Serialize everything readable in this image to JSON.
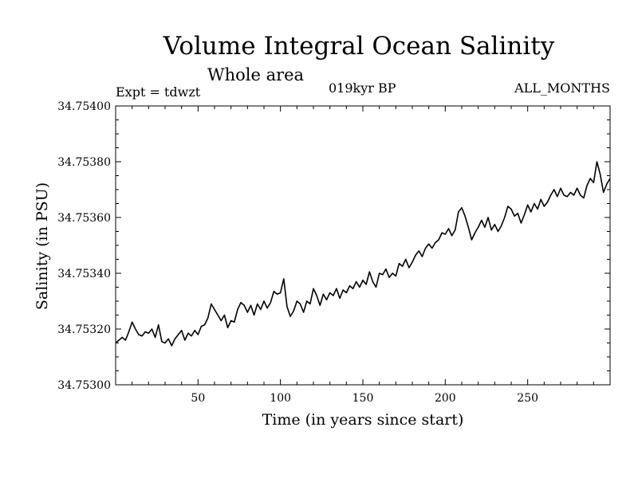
{
  "chart_data": {
    "type": "line",
    "title": "Volume Integral Ocean Salinity",
    "subtitle": "Whole area",
    "experiment": "Expt = tdwzt",
    "period": "019kyr BP",
    "months": "ALL_MONTHS",
    "xlabel": "Time (in years since start)",
    "ylabel": "Salinity (in PSU)",
    "xlim": [
      0,
      300
    ],
    "ylim": [
      34.753,
      34.754
    ],
    "x_ticks": [
      50,
      100,
      150,
      200,
      250
    ],
    "y_ticks": [
      "34.75300",
      "34.75320",
      "34.75340",
      "34.75360",
      "34.75380",
      "34.75400"
    ],
    "grid": false,
    "series": [
      {
        "points": [
          [
            0,
            34.75315
          ],
          [
            2,
            34.75316
          ],
          [
            4,
            34.75317
          ],
          [
            6,
            34.75316
          ],
          [
            8,
            34.75319
          ],
          [
            10,
            34.753225
          ],
          [
            12,
            34.7532
          ],
          [
            14,
            34.75318
          ],
          [
            16,
            34.753175
          ],
          [
            18,
            34.75319
          ],
          [
            20,
            34.753185
          ],
          [
            22,
            34.7532
          ],
          [
            24,
            34.75317
          ],
          [
            26,
            34.753215
          ],
          [
            28,
            34.753155
          ],
          [
            30,
            34.75315
          ],
          [
            32,
            34.753165
          ],
          [
            34,
            34.75314
          ],
          [
            36,
            34.753165
          ],
          [
            38,
            34.75318
          ],
          [
            40,
            34.753195
          ],
          [
            42,
            34.75316
          ],
          [
            44,
            34.753185
          ],
          [
            46,
            34.753175
          ],
          [
            48,
            34.753195
          ],
          [
            50,
            34.75318
          ],
          [
            52,
            34.75321
          ],
          [
            54,
            34.753215
          ],
          [
            56,
            34.75324
          ],
          [
            58,
            34.75329
          ],
          [
            60,
            34.75327
          ],
          [
            62,
            34.75325
          ],
          [
            64,
            34.75323
          ],
          [
            66,
            34.75325
          ],
          [
            68,
            34.753205
          ],
          [
            70,
            34.75323
          ],
          [
            72,
            34.753225
          ],
          [
            74,
            34.75327
          ],
          [
            76,
            34.753295
          ],
          [
            78,
            34.753285
          ],
          [
            80,
            34.75326
          ],
          [
            82,
            34.753285
          ],
          [
            84,
            34.75325
          ],
          [
            86,
            34.75329
          ],
          [
            88,
            34.75327
          ],
          [
            90,
            34.7533
          ],
          [
            92,
            34.753275
          ],
          [
            94,
            34.753295
          ],
          [
            96,
            34.753335
          ],
          [
            98,
            34.753325
          ],
          [
            100,
            34.75333
          ],
          [
            102,
            34.75338
          ],
          [
            104,
            34.75328
          ],
          [
            106,
            34.753245
          ],
          [
            108,
            34.753265
          ],
          [
            110,
            34.7533
          ],
          [
            112,
            34.75329
          ],
          [
            114,
            34.75326
          ],
          [
            116,
            34.7533
          ],
          [
            118,
            34.75329
          ],
          [
            120,
            34.753345
          ],
          [
            122,
            34.75332
          ],
          [
            124,
            34.753285
          ],
          [
            126,
            34.753325
          ],
          [
            128,
            34.753305
          ],
          [
            130,
            34.75333
          ],
          [
            132,
            34.75332
          ],
          [
            134,
            34.753345
          ],
          [
            136,
            34.75331
          ],
          [
            138,
            34.75334
          ],
          [
            140,
            34.75333
          ],
          [
            142,
            34.753355
          ],
          [
            144,
            34.753345
          ],
          [
            146,
            34.75337
          ],
          [
            148,
            34.75335
          ],
          [
            150,
            34.753375
          ],
          [
            152,
            34.75336
          ],
          [
            154,
            34.753405
          ],
          [
            156,
            34.75337
          ],
          [
            158,
            34.75335
          ],
          [
            160,
            34.7534
          ],
          [
            162,
            34.753395
          ],
          [
            164,
            34.753415
          ],
          [
            166,
            34.753385
          ],
          [
            168,
            34.7534
          ],
          [
            170,
            34.75339
          ],
          [
            172,
            34.753435
          ],
          [
            174,
            34.753425
          ],
          [
            176,
            34.75345
          ],
          [
            178,
            34.75342
          ],
          [
            180,
            34.75344
          ],
          [
            182,
            34.753465
          ],
          [
            184,
            34.75348
          ],
          [
            186,
            34.75346
          ],
          [
            188,
            34.75349
          ],
          [
            190,
            34.753505
          ],
          [
            192,
            34.75349
          ],
          [
            194,
            34.75351
          ],
          [
            196,
            34.75352
          ],
          [
            198,
            34.753545
          ],
          [
            200,
            34.75354
          ],
          [
            202,
            34.75356
          ],
          [
            204,
            34.753535
          ],
          [
            206,
            34.753555
          ],
          [
            208,
            34.75362
          ],
          [
            210,
            34.753635
          ],
          [
            212,
            34.753605
          ],
          [
            214,
            34.753565
          ],
          [
            216,
            34.75352
          ],
          [
            218,
            34.753545
          ],
          [
            220,
            34.753565
          ],
          [
            222,
            34.75359
          ],
          [
            224,
            34.753565
          ],
          [
            226,
            34.7536
          ],
          [
            228,
            34.753555
          ],
          [
            230,
            34.753575
          ],
          [
            232,
            34.75355
          ],
          [
            234,
            34.75357
          ],
          [
            236,
            34.7536
          ],
          [
            238,
            34.75364
          ],
          [
            240,
            34.75363
          ],
          [
            242,
            34.753605
          ],
          [
            244,
            34.753615
          ],
          [
            246,
            34.75358
          ],
          [
            248,
            34.75361
          ],
          [
            250,
            34.753645
          ],
          [
            252,
            34.75362
          ],
          [
            254,
            34.75365
          ],
          [
            256,
            34.75363
          ],
          [
            258,
            34.753665
          ],
          [
            260,
            34.75364
          ],
          [
            262,
            34.753655
          ],
          [
            264,
            34.75368
          ],
          [
            266,
            34.7537
          ],
          [
            268,
            34.753675
          ],
          [
            270,
            34.753705
          ],
          [
            272,
            34.75368
          ],
          [
            274,
            34.753675
          ],
          [
            276,
            34.75369
          ],
          [
            278,
            34.75368
          ],
          [
            280,
            34.753705
          ],
          [
            282,
            34.75368
          ],
          [
            284,
            34.75367
          ],
          [
            286,
            34.753715
          ],
          [
            288,
            34.75374
          ],
          [
            290,
            34.753725
          ],
          [
            292,
            34.7538
          ],
          [
            294,
            34.753755
          ],
          [
            296,
            34.75369
          ],
          [
            298,
            34.75372
          ],
          [
            300,
            34.75374
          ]
        ]
      }
    ]
  },
  "colors": {
    "line": "#000000",
    "axes": "#000000",
    "background": "#ffffff"
  }
}
